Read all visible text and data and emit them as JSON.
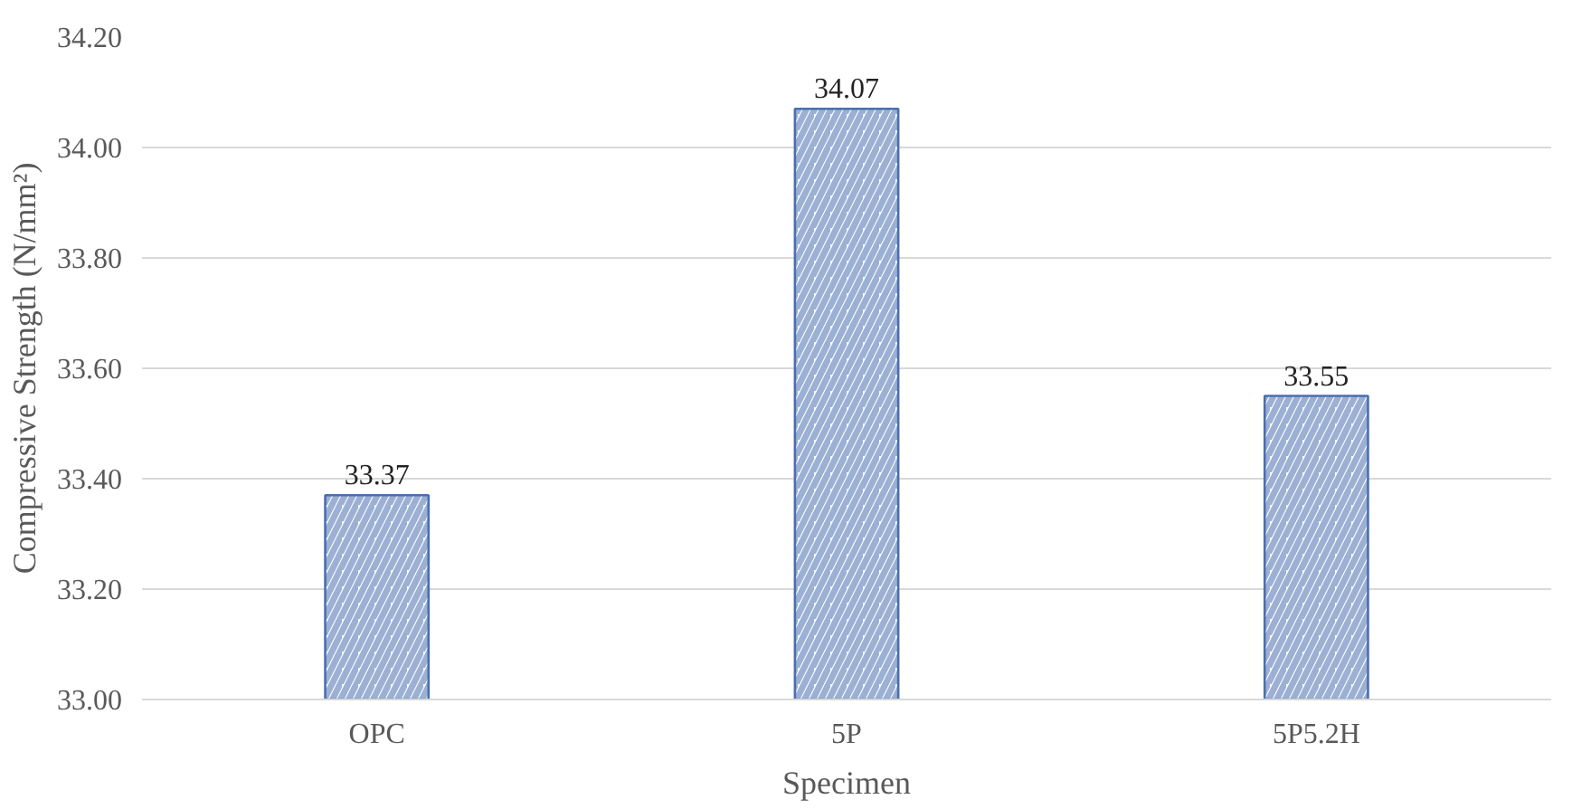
{
  "chart_data": {
    "type": "bar",
    "xlabel": "Specimen",
    "ylabel": "Compressive Strength (N/mm²)",
    "categories": [
      "OPC",
      "5P",
      "5P5.2H"
    ],
    "values": [
      33.37,
      34.07,
      33.55
    ],
    "color": "#4a6fb0",
    "ylim": [
      33.0,
      34.2
    ],
    "yticks": [
      {
        "value": 33.0,
        "label": "33.00"
      },
      {
        "value": 33.2,
        "label": "33.20"
      },
      {
        "value": 33.4,
        "label": "33.40"
      },
      {
        "value": 33.6,
        "label": "33.60"
      },
      {
        "value": 33.8,
        "label": "33.80"
      },
      {
        "value": 34.0,
        "label": "34.00"
      },
      {
        "value": 34.2,
        "label": "34.20"
      }
    ],
    "grid": "y",
    "data_labels": true
  }
}
